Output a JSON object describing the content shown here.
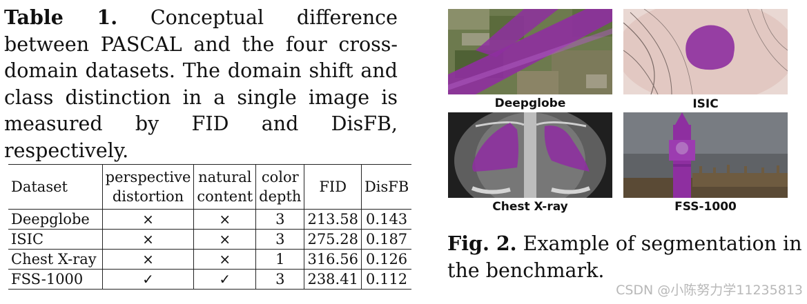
{
  "table_caption": {
    "label": "Table 1.",
    "text": "Conceptual difference between PASCAL and the four cross-domain datasets. The domain shift and class distinction in a single image is measured by FID and DisFB, respectively."
  },
  "table": {
    "headers": [
      {
        "line1": "Dataset",
        "line2": ""
      },
      {
        "line1": "perspective",
        "line2": "distortion"
      },
      {
        "line1": "natural",
        "line2": "content"
      },
      {
        "line1": "color",
        "line2": "depth"
      },
      {
        "line1": "FID",
        "line2": ""
      },
      {
        "line1": "DisFB",
        "line2": ""
      }
    ],
    "rows": [
      {
        "dataset": "Deepglobe",
        "perspective": "×",
        "natural": "×",
        "depth": "3",
        "fid": "213.58",
        "disfb": "0.143"
      },
      {
        "dataset": "ISIC",
        "perspective": "×",
        "natural": "×",
        "depth": "3",
        "fid": "275.28",
        "disfb": "0.187"
      },
      {
        "dataset": "Chest X-ray",
        "perspective": "×",
        "natural": "×",
        "depth": "1",
        "fid": "316.56",
        "disfb": "0.126"
      },
      {
        "dataset": "FSS-1000",
        "perspective": "✓",
        "natural": "✓",
        "depth": "3",
        "fid": "238.41",
        "disfb": "0.112"
      }
    ]
  },
  "figure": {
    "panels": [
      {
        "label": "Deepglobe"
      },
      {
        "label": "ISIC"
      },
      {
        "label": "Chest X-ray"
      },
      {
        "label": "FSS-1000"
      }
    ],
    "mask_color": "#8e2fa0",
    "caption_label": "Fig. 2.",
    "caption_text": "Example of segmentation in the benchmark."
  },
  "watermark": "CSDN @小陈努力学11235813"
}
